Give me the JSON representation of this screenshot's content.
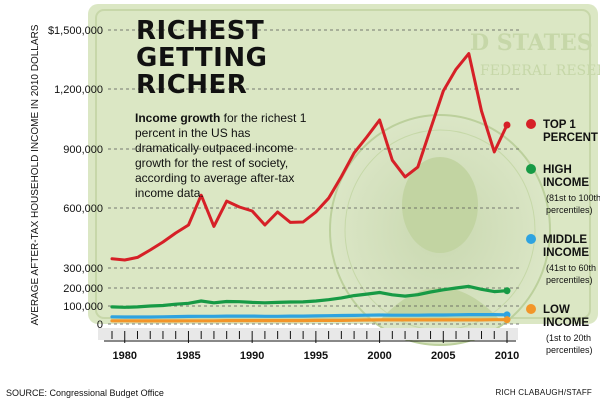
{
  "headline": [
    "RICHEST",
    "GETTING",
    "RICHER"
  ],
  "description": {
    "lead": "Income growth",
    "body": " for the richest 1 percent in the US has dramatically outpaced income growth for the rest of society, according to average after-tax income data."
  },
  "source": "SOURCE: Congressional Budget Office",
  "credit": "RICH CLABAUGH/STAFF",
  "chart_data": {
    "type": "line",
    "ylabel": "AVERAGE AFTER-TAX HOUSEHOLD INCOME IN 2010 DOLLARS",
    "xlabel": "",
    "x": [
      1979,
      1980,
      1981,
      1982,
      1983,
      1984,
      1985,
      1986,
      1987,
      1988,
      1989,
      1990,
      1991,
      1992,
      1993,
      1994,
      1995,
      1996,
      1997,
      1998,
      1999,
      2000,
      2001,
      2002,
      2003,
      2004,
      2005,
      2006,
      2007,
      2008,
      2009,
      2010
    ],
    "xticks": [
      1980,
      1985,
      1990,
      1995,
      2000,
      2005,
      2010
    ],
    "yticks": [
      0,
      100000,
      200000,
      300000,
      600000,
      900000,
      1200000,
      1500000
    ],
    "ytick_labels": [
      "0",
      "100,000",
      "200,000",
      "300,000",
      "600,000",
      "900,000",
      "1,200,000",
      "$1,500,000"
    ],
    "ylim": [
      0,
      1500000
    ],
    "grid": true,
    "legend_position": "right",
    "series": [
      {
        "name": "TOP 1 PERCENT",
        "sub": "",
        "color": "#d62027",
        "values": [
          346000,
          340000,
          353000,
          390000,
          430000,
          475000,
          515000,
          665000,
          508000,
          635000,
          605000,
          585000,
          515000,
          580000,
          528000,
          530000,
          580000,
          650000,
          760000,
          880000,
          960000,
          1045000,
          843000,
          758000,
          808000,
          1000000,
          1190000,
          1300000,
          1380000,
          1090000,
          885000,
          1020000
        ]
      },
      {
        "name": "HIGH INCOME",
        "sub": "(81st to 100th percentiles)",
        "color": "#179a45",
        "values": [
          95000,
          93000,
          95000,
          100000,
          103000,
          110000,
          115000,
          128000,
          118000,
          125000,
          124000,
          120000,
          118000,
          120000,
          122000,
          123000,
          128000,
          135000,
          145000,
          158000,
          166000,
          175000,
          162000,
          155000,
          163000,
          178000,
          190000,
          200000,
          208000,
          193000,
          180000,
          185000
        ]
      },
      {
        "name": "MIDDLE INCOME",
        "sub": "(41st to 60th percentiles)",
        "color": "#2ea3e0",
        "values": [
          40000,
          39000,
          39000,
          39000,
          40000,
          41000,
          42000,
          43000,
          43000,
          44000,
          44000,
          44000,
          43000,
          43000,
          44000,
          44000,
          45000,
          46000,
          47000,
          48000,
          49000,
          50000,
          49000,
          49000,
          49000,
          50000,
          50000,
          51000,
          52000,
          52000,
          52000,
          51000
        ]
      },
      {
        "name": "LOW INCOME",
        "sub": "(1st to 20th percentiles)",
        "color": "#f2962a",
        "values": [
          18000,
          18000,
          17000,
          17000,
          17000,
          17000,
          18000,
          18000,
          18000,
          19000,
          19000,
          19000,
          19000,
          19000,
          19000,
          19000,
          20000,
          20000,
          20000,
          21000,
          22000,
          23000,
          23000,
          23000,
          23000,
          23000,
          23000,
          23000,
          23000,
          23000,
          24000,
          24000
        ]
      }
    ]
  }
}
